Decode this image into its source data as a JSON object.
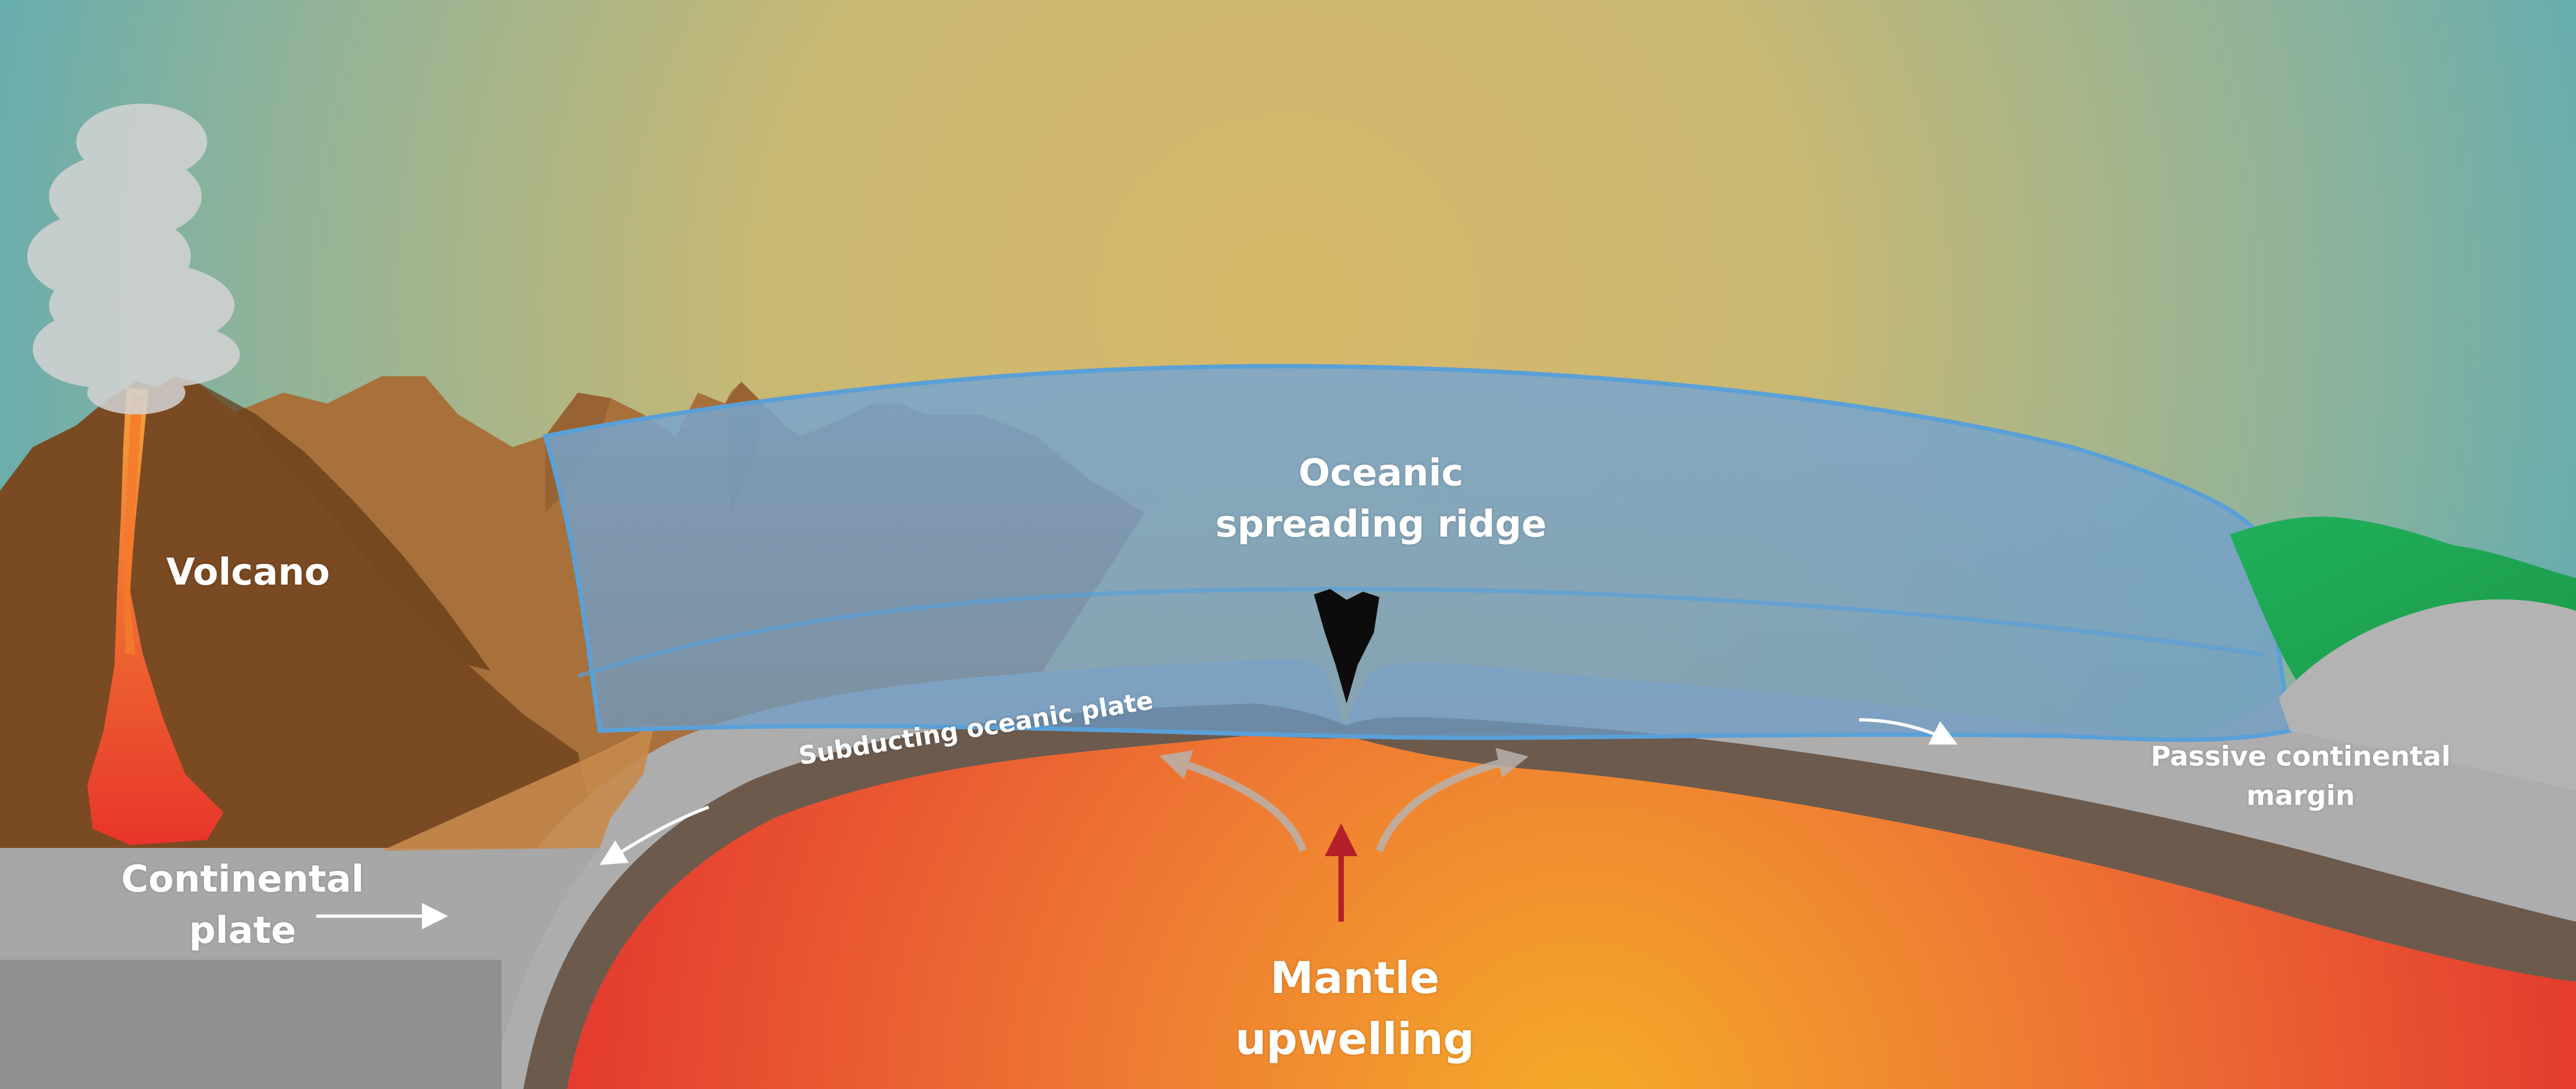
{
  "labels": {
    "oceanic_ridge": [
      "Oceanic",
      "spreading ridge"
    ],
    "volcano": "Volcano",
    "subducting_plate": "Subducting oceanic plate",
    "passive_margin": [
      "Passive continental",
      "margin"
    ],
    "continental_plate": [
      "Continental",
      "plate"
    ],
    "mantle_upwelling": [
      "Mantle",
      "upwelling"
    ]
  },
  "colors": {
    "sky_top_edge": "#5aaeb8",
    "sky_center": "#d6b769",
    "ocean": "#6f9fc6",
    "ocean_edge": "#5b9fd6",
    "volcano": "#7a4a22",
    "mountains": "#a9713c",
    "lava": "#e8432a",
    "mantle_hot": "#f4a62a",
    "mantle_outer": "#e53a2f",
    "crust_gray": "#a9a9a9",
    "lithosphere_dark": "#6b5a4e",
    "vegetation": "#2bb35c",
    "smoke": "#cfcfcf",
    "arrow_red": "#b3202a"
  },
  "icons": [
    "smoke-plume",
    "motion-arrow",
    "upwelling-arrow"
  ]
}
